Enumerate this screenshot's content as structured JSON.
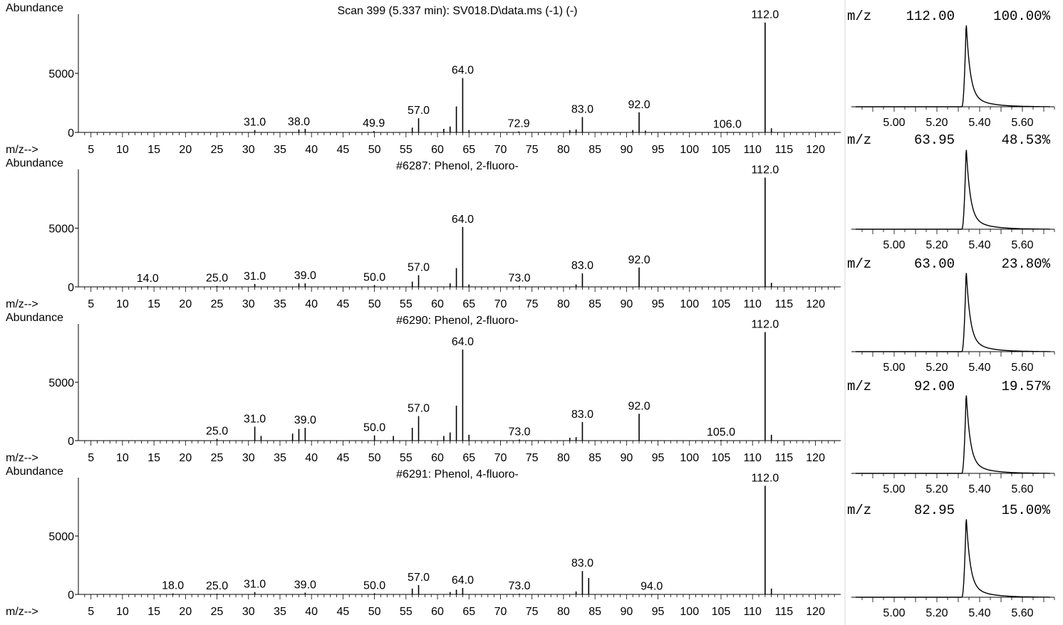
{
  "labels": {
    "abundance": "Abundance",
    "mz_axis": "m/z-->"
  },
  "spectra": [
    {
      "title": "Scan 399 (5.337 min): SV018.D\\data.ms (-1) (-)",
      "ytick_label": "5000",
      "zero_label": "0",
      "peaks": [
        {
          "mz": 112.0,
          "abundance": 9300,
          "label": "112.0"
        },
        {
          "mz": 64.0,
          "abundance": 4600,
          "label": "64.0"
        },
        {
          "mz": 63.0,
          "abundance": 2200
        },
        {
          "mz": 57.0,
          "abundance": 1200,
          "label": "57.0"
        },
        {
          "mz": 56.0,
          "abundance": 400
        },
        {
          "mz": 92.0,
          "abundance": 1700,
          "label": "92.0"
        },
        {
          "mz": 83.0,
          "abundance": 1300,
          "label": "83.0"
        },
        {
          "mz": 113.0,
          "abundance": 350
        },
        {
          "mz": 31.0,
          "abundance": 200,
          "label": "31.0"
        },
        {
          "mz": 38.0,
          "abundance": 250,
          "label": "38.0"
        },
        {
          "mz": 39.0,
          "abundance": 300
        },
        {
          "mz": 49.9,
          "abundance": 120,
          "label": "49.9"
        },
        {
          "mz": 72.9,
          "abundance": 80,
          "label": "72.9"
        },
        {
          "mz": 106.0,
          "abundance": 40,
          "label": "106.0"
        },
        {
          "mz": 62.0,
          "abundance": 500
        },
        {
          "mz": 61.0,
          "abundance": 300
        },
        {
          "mz": 65.0,
          "abundance": 200
        },
        {
          "mz": 81.0,
          "abundance": 200
        },
        {
          "mz": 82.0,
          "abundance": 250
        },
        {
          "mz": 91.0,
          "abundance": 200
        },
        {
          "mz": 93.0,
          "abundance": 150
        }
      ]
    },
    {
      "title": "#6287: Phenol, 2-fluoro-",
      "ytick_label": "5000",
      "zero_label": "0",
      "peaks": [
        {
          "mz": 112.0,
          "abundance": 9300,
          "label": "112.0"
        },
        {
          "mz": 64.0,
          "abundance": 5100,
          "label": "64.0"
        },
        {
          "mz": 63.0,
          "abundance": 1600
        },
        {
          "mz": 57.0,
          "abundance": 1000,
          "label": "57.0"
        },
        {
          "mz": 56.0,
          "abundance": 450
        },
        {
          "mz": 92.0,
          "abundance": 1650,
          "label": "92.0"
        },
        {
          "mz": 83.0,
          "abundance": 1150,
          "label": "83.0"
        },
        {
          "mz": 113.0,
          "abundance": 350
        },
        {
          "mz": 14.0,
          "abundance": 60,
          "label": "14.0"
        },
        {
          "mz": 25.0,
          "abundance": 80,
          "label": "25.0"
        },
        {
          "mz": 31.0,
          "abundance": 250,
          "label": "31.0"
        },
        {
          "mz": 38.0,
          "abundance": 300
        },
        {
          "mz": 39.0,
          "abundance": 300,
          "label": "39.0"
        },
        {
          "mz": 50.0,
          "abundance": 150,
          "label": "50.0"
        },
        {
          "mz": 73.0,
          "abundance": 80,
          "label": "73.0"
        },
        {
          "mz": 62.0,
          "abundance": 300
        },
        {
          "mz": 65.0,
          "abundance": 200
        },
        {
          "mz": 82.0,
          "abundance": 200
        }
      ]
    },
    {
      "title": "#6290: Phenol, 2-fluoro-",
      "ytick_label": "5000",
      "zero_label": "0",
      "peaks": [
        {
          "mz": 112.0,
          "abundance": 9300,
          "label": "112.0"
        },
        {
          "mz": 64.0,
          "abundance": 7800,
          "label": "64.0"
        },
        {
          "mz": 63.0,
          "abundance": 3000
        },
        {
          "mz": 62.0,
          "abundance": 700
        },
        {
          "mz": 61.0,
          "abundance": 400
        },
        {
          "mz": 57.0,
          "abundance": 2100,
          "label": "57.0"
        },
        {
          "mz": 56.0,
          "abundance": 1100
        },
        {
          "mz": 92.0,
          "abundance": 2300,
          "label": "92.0"
        },
        {
          "mz": 83.0,
          "abundance": 1600,
          "label": "83.0"
        },
        {
          "mz": 82.0,
          "abundance": 300
        },
        {
          "mz": 81.0,
          "abundance": 250
        },
        {
          "mz": 113.0,
          "abundance": 500
        },
        {
          "mz": 25.0,
          "abundance": 150,
          "label": "25.0"
        },
        {
          "mz": 31.0,
          "abundance": 1200,
          "label": "31.0"
        },
        {
          "mz": 32.0,
          "abundance": 400
        },
        {
          "mz": 37.0,
          "abundance": 600
        },
        {
          "mz": 38.0,
          "abundance": 1000
        },
        {
          "mz": 39.0,
          "abundance": 1100,
          "label": "39.0"
        },
        {
          "mz": 50.0,
          "abundance": 450,
          "label": "50.0"
        },
        {
          "mz": 53.0,
          "abundance": 400
        },
        {
          "mz": 65.0,
          "abundance": 500
        },
        {
          "mz": 73.0,
          "abundance": 100,
          "label": "73.0"
        },
        {
          "mz": 105.0,
          "abundance": 60,
          "label": "105.0"
        }
      ]
    },
    {
      "title": "#6291: Phenol, 4-fluoro-",
      "ytick_label": "5000",
      "zero_label": "0",
      "peaks": [
        {
          "mz": 112.0,
          "abundance": 9300,
          "label": "112.0"
        },
        {
          "mz": 83.0,
          "abundance": 2000,
          "label": "83.0"
        },
        {
          "mz": 84.0,
          "abundance": 1400
        },
        {
          "mz": 57.0,
          "abundance": 800,
          "label": "57.0"
        },
        {
          "mz": 56.0,
          "abundance": 500
        },
        {
          "mz": 64.0,
          "abundance": 550,
          "label": "64.0"
        },
        {
          "mz": 63.0,
          "abundance": 400
        },
        {
          "mz": 113.0,
          "abundance": 500
        },
        {
          "mz": 18.0,
          "abundance": 80,
          "label": "18.0"
        },
        {
          "mz": 25.0,
          "abundance": 60,
          "label": "25.0"
        },
        {
          "mz": 31.0,
          "abundance": 200,
          "label": "31.0"
        },
        {
          "mz": 39.0,
          "abundance": 150,
          "label": "39.0"
        },
        {
          "mz": 50.0,
          "abundance": 100,
          "label": "50.0"
        },
        {
          "mz": 73.0,
          "abundance": 60,
          "label": "73.0"
        },
        {
          "mz": 94.0,
          "abundance": 40,
          "label": "94.0"
        },
        {
          "mz": 82.0,
          "abundance": 250
        },
        {
          "mz": 62.0,
          "abundance": 200
        }
      ]
    }
  ],
  "ion_chromatograms": [
    {
      "prefix": "m/z",
      "mz": "112.00",
      "percent": "100.00%"
    },
    {
      "prefix": "m/z",
      "mz": "63.95",
      "percent": "48.53%"
    },
    {
      "prefix": "m/z",
      "mz": "63.00",
      "percent": "23.80%"
    },
    {
      "prefix": "m/z",
      "mz": "92.00",
      "percent": "19.57%"
    },
    {
      "prefix": "m/z",
      "mz": "82.95",
      "percent": "15.00%"
    }
  ],
  "chart_data": [
    {
      "type": "bar",
      "title": "Scan 399 (5.337 min): SV018.D\\data.ms (-1) (-)",
      "xlabel": "m/z-->",
      "ylabel": "Abundance",
      "xlim": [
        3,
        124
      ],
      "ylim": [
        0,
        10000
      ],
      "xticks": [
        5,
        10,
        15,
        20,
        25,
        30,
        35,
        40,
        45,
        50,
        55,
        60,
        65,
        70,
        75,
        80,
        85,
        90,
        95,
        100,
        105,
        110,
        115,
        120
      ],
      "yticks": [
        0,
        5000
      ],
      "x": [
        112.0,
        64.0,
        63.0,
        57.0,
        92.0,
        83.0,
        31.0,
        38.0,
        49.9,
        72.9,
        106.0
      ],
      "values": [
        9300,
        4600,
        2200,
        1200,
        1700,
        1300,
        200,
        250,
        120,
        80,
        40
      ]
    },
    {
      "type": "bar",
      "title": "#6287: Phenol, 2-fluoro-",
      "xlabel": "m/z-->",
      "ylabel": "Abundance",
      "xlim": [
        3,
        124
      ],
      "ylim": [
        0,
        10000
      ],
      "x": [
        112.0,
        64.0,
        63.0,
        57.0,
        92.0,
        83.0,
        14.0,
        25.0,
        31.0,
        39.0,
        50.0,
        73.0
      ],
      "values": [
        9300,
        5100,
        1600,
        1000,
        1650,
        1150,
        60,
        80,
        250,
        300,
        150,
        80
      ]
    },
    {
      "type": "bar",
      "title": "#6290: Phenol, 2-fluoro-",
      "xlabel": "m/z-->",
      "ylabel": "Abundance",
      "xlim": [
        3,
        124
      ],
      "ylim": [
        0,
        10000
      ],
      "x": [
        112.0,
        64.0,
        63.0,
        57.0,
        92.0,
        83.0,
        25.0,
        31.0,
        39.0,
        50.0,
        73.0,
        105.0
      ],
      "values": [
        9300,
        7800,
        3000,
        2100,
        2300,
        1600,
        150,
        1200,
        1100,
        450,
        100,
        60
      ]
    },
    {
      "type": "bar",
      "title": "#6291: Phenol, 4-fluoro-",
      "xlabel": "m/z-->",
      "ylabel": "Abundance",
      "xlim": [
        3,
        124
      ],
      "ylim": [
        0,
        10000
      ],
      "x": [
        112.0,
        83.0,
        84.0,
        57.0,
        64.0,
        18.0,
        25.0,
        31.0,
        39.0,
        50.0,
        73.0,
        94.0
      ],
      "values": [
        9300,
        2000,
        1400,
        800,
        550,
        80,
        60,
        200,
        150,
        100,
        60,
        40
      ]
    },
    {
      "type": "line",
      "title": "m/z 112.00 100.00%",
      "xticks": [
        "5.00",
        "5.20",
        "5.40",
        "5.60"
      ],
      "xlim": [
        4.8,
        5.75
      ],
      "ylim": [
        0,
        1
      ],
      "peak_time": 5.337,
      "relative_height": 1.0
    },
    {
      "type": "line",
      "title": "m/z 63.95 48.53%",
      "xticks": [
        "5.00",
        "5.20",
        "5.40",
        "5.60"
      ],
      "xlim": [
        4.8,
        5.75
      ],
      "ylim": [
        0,
        1
      ],
      "peak_time": 5.337,
      "relative_height": 1.0
    },
    {
      "type": "line",
      "title": "m/z 63.00 23.80%",
      "xticks": [
        "5.00",
        "5.20",
        "5.40",
        "5.60"
      ],
      "xlim": [
        4.8,
        5.75
      ],
      "ylim": [
        0,
        1
      ],
      "peak_time": 5.337,
      "relative_height": 1.0
    },
    {
      "type": "line",
      "title": "m/z 92.00 19.57%",
      "xticks": [
        "5.00",
        "5.20",
        "5.40",
        "5.60"
      ],
      "xlim": [
        4.8,
        5.75
      ],
      "ylim": [
        0,
        1
      ],
      "peak_time": 5.337,
      "relative_height": 1.0
    },
    {
      "type": "line",
      "title": "m/z 82.95 15.00%",
      "xticks": [
        "5.00",
        "5.20",
        "5.40",
        "5.60"
      ],
      "xlim": [
        4.8,
        5.75
      ],
      "ylim": [
        0,
        1
      ],
      "peak_time": 5.337,
      "relative_height": 1.0
    }
  ]
}
